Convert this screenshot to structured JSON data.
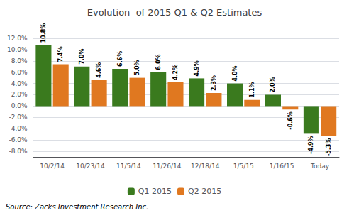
{
  "chart_data": {
    "type": "bar",
    "title": "Evolution  of 2015 Q1 & Q2 Estimates",
    "categories": [
      "10/2/14",
      "10/23/14",
      "11/5/14",
      "11/26/14",
      "12/18/14",
      "1/5/15",
      "1/16/15",
      "Today"
    ],
    "series": [
      {
        "name": "Q1 2015",
        "color": "#3a7a1e",
        "values": [
          10.8,
          7.0,
          6.6,
          6.0,
          4.9,
          4.0,
          2.0,
          -4.9
        ],
        "value_labels": [
          "10.8%",
          "7.0%",
          "6.6%",
          "6.0%",
          "4.9%",
          "4.0%",
          "2.0%",
          "-4.9%"
        ]
      },
      {
        "name": "Q2 2015",
        "color": "#e07820",
        "values": [
          7.4,
          4.6,
          5.0,
          4.2,
          2.3,
          1.1,
          -0.6,
          -5.3
        ],
        "value_labels": [
          "7.4%",
          "4.6%",
          "5.0%",
          "4.2%",
          "2.3%",
          "1.1%",
          "-0.6%",
          "-5.3%"
        ]
      }
    ],
    "ylim": [
      -9.0,
      13.5
    ],
    "yticks": [
      {
        "value": -8.0,
        "label": "-8.0%"
      },
      {
        "value": -6.0,
        "label": "-6.0%"
      },
      {
        "value": -4.0,
        "label": "-4.0%"
      },
      {
        "value": -2.0,
        "label": "-2.0%"
      },
      {
        "value": 0.0,
        "label": "0.0%"
      },
      {
        "value": 2.0,
        "label": "2.0%"
      },
      {
        "value": 4.0,
        "label": "4.0%"
      },
      {
        "value": 6.0,
        "label": "6.0%"
      },
      {
        "value": 8.0,
        "label": "8.0%"
      },
      {
        "value": 10.0,
        "label": "10.0%"
      },
      {
        "value": 12.0,
        "label": "12.0%"
      }
    ],
    "grid": true,
    "legend": "bottom",
    "data_labels": true,
    "annotations": [
      "Source: Zacks Investment Research Inc."
    ]
  }
}
